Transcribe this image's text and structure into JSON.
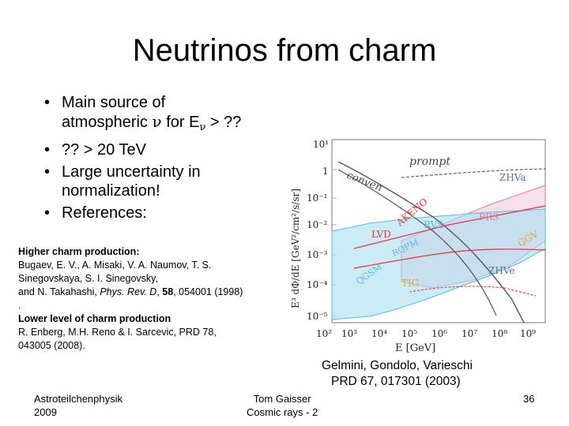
{
  "title": "Neutrinos from charm",
  "bullets": [
    {
      "line1": "Main source of",
      "line2_a": "atmospheric ",
      "nu": "ν",
      "line2_b": " for E",
      "line2_c": " > ??"
    },
    {
      "text": "?? > 20 TeV"
    },
    {
      "line1": "Large uncertainty in",
      "line2": "normalization!"
    },
    {
      "text": "References:"
    }
  ],
  "references": {
    "heading1": "Higher charm production:",
    "ref1_line1": "Bugaev, E. V., A. Misaki, V. A. Naumov, T. S.",
    "ref1_line2": "Sinegovskaya, S. I. Sinegovsky,",
    "ref1_line3_a": "and N. Takahashi, ",
    "ref1_journal": "Phys. Rev. D",
    "ref1_sep": ", ",
    "ref1_vol": "58",
    "ref1_line3_b": ", 054001 (1998)",
    "dot": ".",
    "heading2": "Lower level of charm production",
    "ref2_line1": "R. Enberg, M.H. Reno & I. Sarcevic, PRD 78,",
    "ref2_line2": "043005 (2008)."
  },
  "figure": {
    "y_label": "E³ dΦ/dE   [GeV²/cm²/s/sr]",
    "x_label": "E [GeV]",
    "y_ticks": [
      "10¹",
      "1",
      "10⁻¹",
      "10⁻²",
      "10⁻³",
      "10⁻⁴",
      "10⁻⁵"
    ],
    "x_ticks": [
      "10²",
      "10³",
      "10⁴",
      "10⁵",
      "10⁶",
      "10⁷",
      "10⁸",
      "10⁹"
    ],
    "labels": {
      "prompt": "prompt",
      "zhva": "ZHVa",
      "conven": "conven",
      "akeno": "AKENO",
      "rvs": "RVS",
      "prs": "PRS",
      "lvd": "LVD",
      "ggv": "GGV",
      "rqpm": "RQPM",
      "qgsm": "QGSM",
      "zhve": "ZHVe",
      "tig": "TIG"
    },
    "colors": {
      "prompt_band": "#5ab8e0",
      "zhv_band": "#d87aa0",
      "red": "#e8333c",
      "gray": "#555555"
    }
  },
  "credit": {
    "line1": "Gelmini, Gondolo, Varieschi",
    "line2": "PRD 67, 017301 (2003)"
  },
  "footer": {
    "left1": "Astroteilchenphysik",
    "left2": "2009",
    "center1": "Tom Gaisser",
    "center2": "Cosmic rays - 2",
    "page": "36"
  }
}
